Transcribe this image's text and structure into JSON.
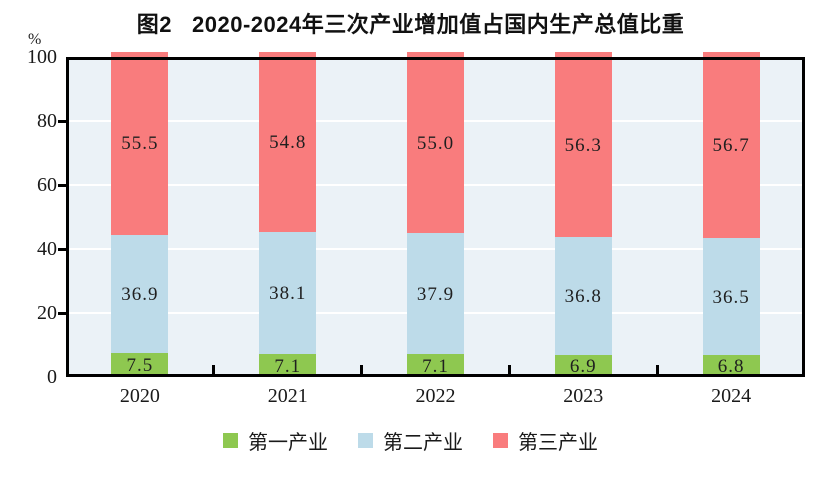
{
  "title": {
    "prefix": "图2",
    "main": "2020-2024年三次产业增加值占国内生产总值比重"
  },
  "y_axis": {
    "unit": "%",
    "ticks": [
      0,
      20,
      40,
      60,
      80,
      100
    ]
  },
  "chart_data": {
    "type": "bar",
    "stacked": true,
    "title": "图2 2020-2024年三次产业增加值占国内生产总值比重",
    "categories": [
      "2020",
      "2021",
      "2022",
      "2023",
      "2024"
    ],
    "series": [
      {
        "name": "第一产业",
        "color": "#8EC850",
        "values": [
          7.5,
          7.1,
          7.1,
          6.9,
          6.8
        ]
      },
      {
        "name": "第二产业",
        "color": "#BDDBE9",
        "values": [
          36.9,
          38.1,
          37.9,
          36.8,
          36.5
        ]
      },
      {
        "name": "第三产业",
        "color": "#F97C7D",
        "values": [
          55.5,
          54.8,
          55.0,
          56.3,
          56.7
        ]
      }
    ],
    "xlabel": "",
    "ylabel": "%",
    "ylim": [
      0,
      100
    ],
    "grid": true,
    "gridlines_at": [
      20,
      40,
      60,
      80
    ],
    "legend_position": "bottom"
  },
  "style": {
    "plot_background": "#EBF2F7",
    "grid_color": "#FFFFFF",
    "axis_color": "#000000",
    "text_color": "#1A1A1A"
  }
}
